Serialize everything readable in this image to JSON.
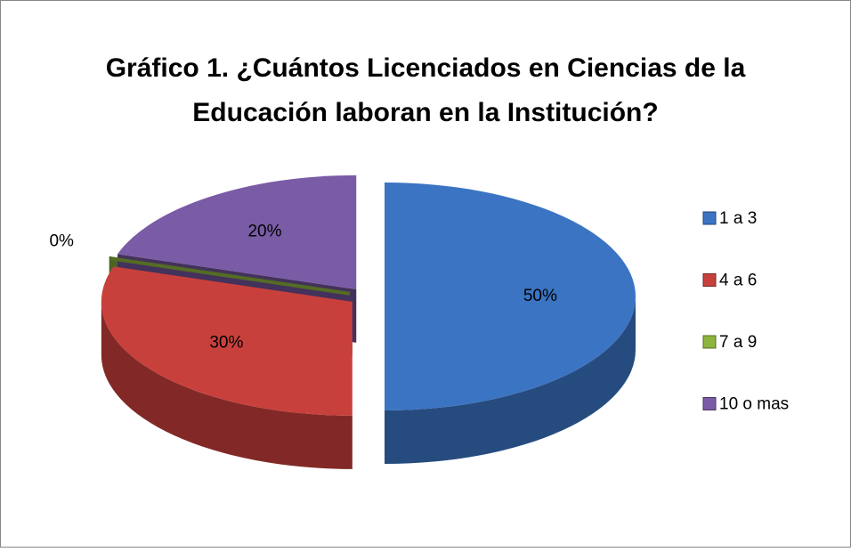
{
  "chart_data": {
    "type": "pie3d",
    "title": [
      "Gráfico 1. ¿Cuántos Licenciados en Ciencias de la",
      "Educación laboran en la Institución?"
    ],
    "categories": [
      "1 a 3",
      "4 a 6",
      "7 a 9",
      "10 o mas"
    ],
    "values": [
      50,
      30,
      0,
      20
    ],
    "value_labels": [
      "50%",
      "30%",
      "0%",
      "20%"
    ],
    "colors": [
      "#3b74c2",
      "#c8403c",
      "#8db43c",
      "#7a5ba6"
    ],
    "legend": "right"
  }
}
